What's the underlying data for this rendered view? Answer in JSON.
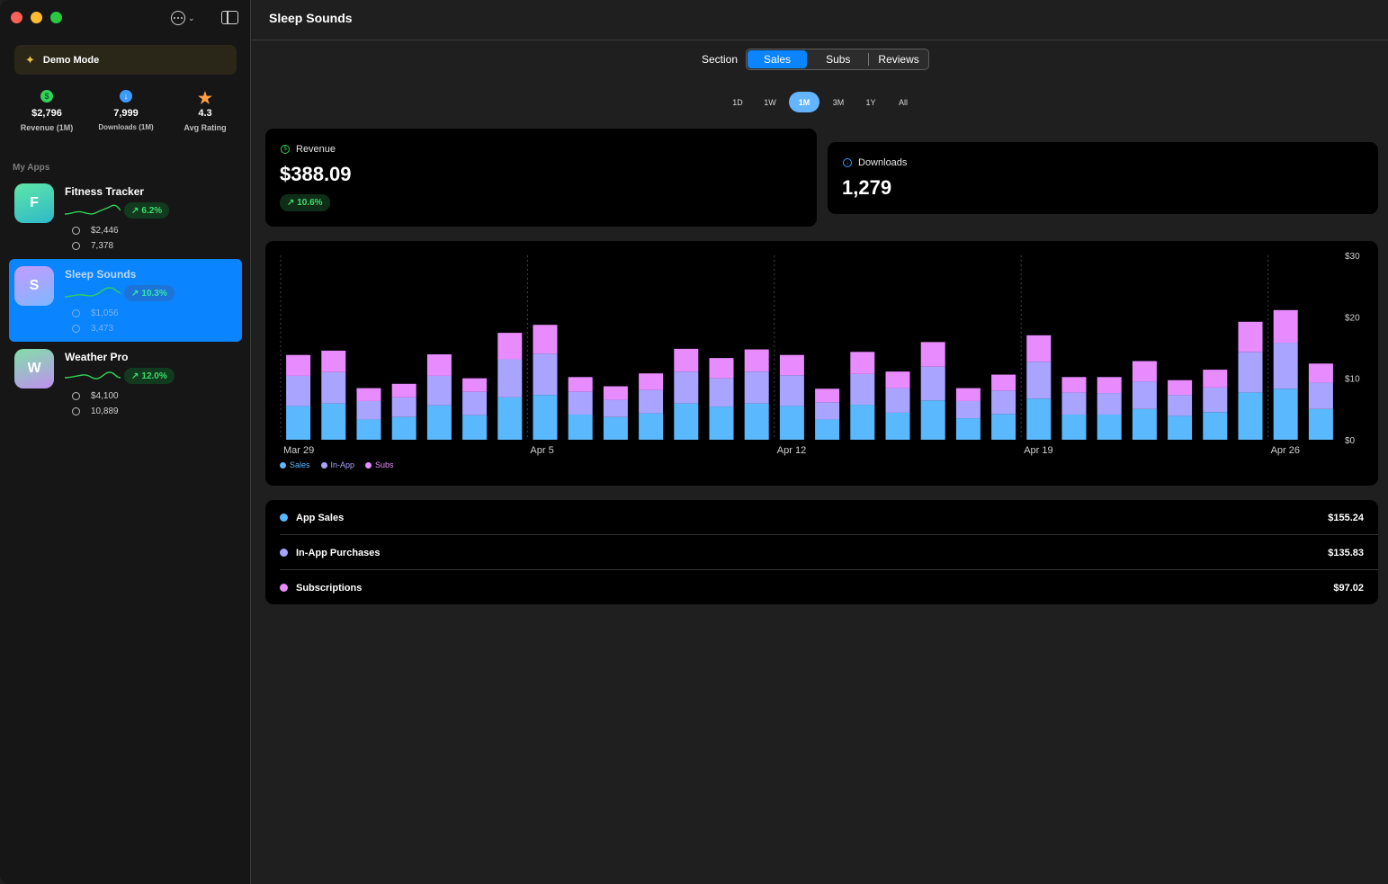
{
  "window": {
    "title": "Sleep Sounds"
  },
  "sidebar": {
    "demo_mode": "Demo Mode",
    "stats": [
      {
        "icon": "dollar-icon",
        "value": "$2,796",
        "caption": "Revenue (1M)"
      },
      {
        "icon": "download-icon",
        "value": "7,999",
        "caption": "Downloads (1M)"
      },
      {
        "icon": "star-icon",
        "value": "4.3",
        "caption": "Avg Rating"
      }
    ],
    "section_label": "My Apps",
    "apps": [
      {
        "letter": "F",
        "name": "Fitness Tracker",
        "change": "6.2%",
        "revenue": "$2,446",
        "downloads": "7,378",
        "selected": false
      },
      {
        "letter": "S",
        "name": "Sleep Sounds",
        "change": "10.3%",
        "revenue": "$1,056",
        "downloads": "3,473",
        "selected": true
      },
      {
        "letter": "W",
        "name": "Weather Pro",
        "change": "12.0%",
        "revenue": "$4,100",
        "downloads": "10,889",
        "selected": false
      }
    ]
  },
  "toolbar": {
    "section_label": "Section",
    "segments": [
      "Sales",
      "Subs",
      "Reviews"
    ],
    "active_segment": "Sales",
    "ranges": [
      "1D",
      "1W",
      "1M",
      "3M",
      "1Y",
      "All"
    ],
    "active_range": "1M"
  },
  "revenue_card": {
    "label": "Revenue",
    "value": "$388.09",
    "change": "10.6%"
  },
  "downloads_card": {
    "label": "Downloads",
    "value": "1,279"
  },
  "chart_data": {
    "type": "bar",
    "stacked": true,
    "x_tick_labels": [
      "Mar 29",
      "Apr 5",
      "Apr 12",
      "Apr 19",
      "Apr 26"
    ],
    "y_tick_labels": [
      "$30",
      "$20",
      "$10",
      "$0"
    ],
    "ylim": [
      0,
      30
    ],
    "colors": {
      "Sales": "#5ab8ff",
      "In-App": "#a9a4ff",
      "Subs": "#e88bff"
    },
    "series": [
      {
        "name": "Sales",
        "values": [
          5.5,
          5.9,
          3.3,
          3.7,
          5.6,
          4.0,
          6.9,
          7.3,
          4.1,
          3.7,
          4.3,
          5.9,
          5.4,
          5.9,
          5.5,
          3.3,
          5.7,
          4.4,
          6.4,
          3.5,
          4.2,
          6.7,
          4.1,
          4.1,
          5.0,
          3.9,
          4.5,
          7.7,
          8.3,
          5.0
        ]
      },
      {
        "name": "In-App",
        "values": [
          4.9,
          5.1,
          3.0,
          3.2,
          4.8,
          3.8,
          6.2,
          6.7,
          3.7,
          2.8,
          3.8,
          5.2,
          4.6,
          5.2,
          5.0,
          2.8,
          5.0,
          4.0,
          5.5,
          2.8,
          3.8,
          6.0,
          3.6,
          3.5,
          4.5,
          3.4,
          4.0,
          6.6,
          7.5,
          4.3
        ]
      },
      {
        "name": "Subs",
        "values": [
          3.4,
          3.5,
          2.1,
          2.2,
          3.5,
          2.2,
          4.3,
          4.7,
          2.4,
          2.2,
          2.7,
          3.7,
          3.3,
          3.6,
          3.3,
          2.2,
          3.6,
          2.7,
          4.0,
          2.1,
          2.6,
          4.3,
          2.5,
          2.6,
          3.3,
          2.4,
          2.9,
          4.9,
          5.3,
          3.1
        ]
      }
    ]
  },
  "breakdown": [
    {
      "label": "App Sales",
      "value": "$155.24",
      "color": "#5ab8ff"
    },
    {
      "label": "In-App Purchases",
      "value": "$135.83",
      "color": "#a9a4ff"
    },
    {
      "label": "Subscriptions",
      "value": "$97.02",
      "color": "#e88bff"
    }
  ]
}
